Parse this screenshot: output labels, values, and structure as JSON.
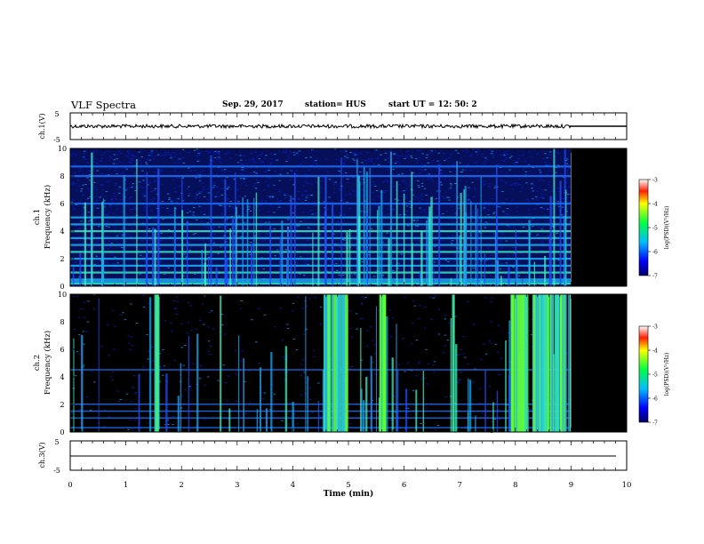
{
  "header": {
    "title": "VLF Spectra",
    "date": "Sep. 29, 2017",
    "station": "station= HUS",
    "start": "start  UT =   12: 50: 2"
  },
  "chart_data": [
    {
      "type": "line",
      "panel": "ch1-waveform",
      "ylabel": "ch.1(V)",
      "ylim": [
        -5,
        5
      ],
      "yticks": [
        "5",
        "-5"
      ],
      "xlim": [
        0,
        10
      ],
      "description_level": 0,
      "data_end_min": 9.0
    },
    {
      "type": "heatmap",
      "panel": "ch1-spectrogram",
      "ylabel": "ch.1\nFrequency (kHz)",
      "ylim": [
        0,
        10
      ],
      "yticks": [
        "0",
        "2",
        "4",
        "6",
        "8",
        "10"
      ],
      "xlim": [
        0,
        10
      ],
      "data_end_min": 9.0,
      "persistent_lines_khz": [
        0.2,
        0.35,
        0.5,
        1.0,
        1.5,
        2.0,
        2.5,
        3.0,
        3.5,
        4.0,
        4.5,
        5.0,
        6.0,
        8.0,
        8.7
      ],
      "colorbar": {
        "label": "log(PSD)(V²/Hz)",
        "ticks": [
          "-3",
          "-4",
          "-5",
          "-6",
          "-7"
        ],
        "range": [
          -7,
          -3
        ]
      }
    },
    {
      "type": "heatmap",
      "panel": "ch2-spectrogram",
      "ylabel": "ch.2\nFrequency (kHz)",
      "ylim": [
        0,
        10
      ],
      "yticks": [
        "0",
        "2",
        "4",
        "6",
        "8",
        "10"
      ],
      "xlim": [
        0,
        10
      ],
      "data_end_min": 9.0,
      "persistent_lines_khz": [
        0.3,
        1.0,
        1.5,
        2.0,
        4.5
      ],
      "bursts_min": [
        [
          1.5,
          1.6
        ],
        [
          4.55,
          5.0
        ],
        [
          5.55,
          5.65
        ],
        [
          6.85,
          6.9
        ],
        [
          7.85,
          8.2
        ],
        [
          8.3,
          9.0
        ]
      ],
      "colorbar": {
        "label": "log(PSD)(V²/Hz)",
        "ticks": [
          "-3",
          "-4",
          "-5",
          "-6",
          "-7"
        ],
        "range": [
          -7,
          -3
        ]
      }
    },
    {
      "type": "line",
      "panel": "ch3-waveform",
      "ylabel": "ch.3(V)",
      "ylim": [
        -5,
        5
      ],
      "yticks": [
        "5",
        "-5"
      ],
      "xlim": [
        0,
        10
      ],
      "level": 0
    }
  ],
  "xaxis": {
    "label": "Time (min)",
    "ticks": [
      "0",
      "1",
      "2",
      "3",
      "4",
      "5",
      "6",
      "7",
      "8",
      "9",
      "10"
    ]
  }
}
